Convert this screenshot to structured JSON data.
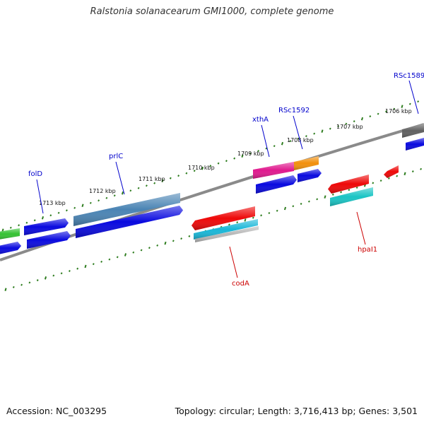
{
  "title": "Ralstonia solanacearum GMI1000, complete genome",
  "footer": {
    "accession": "Accession: NC_003295",
    "topology": "Topology: circular; Length: 3,716,413 bp; Genes: 3,501"
  },
  "colors": {
    "backbone": "#8a8a8a",
    "tick": "#2e7d1f",
    "forward_label": "#0000cc",
    "reverse_label": "#cc0000",
    "blue": "#0a0adf",
    "steelblue": "#4a84b4",
    "green": "#34c232",
    "magenta": "#e0198e",
    "orange": "#f2900c",
    "gray": "#606060",
    "red": "#ee0808",
    "cyan": "#19b7d8",
    "silver": "#b8b8b8",
    "teal": "#1ac4c4"
  },
  "ticks": [
    {
      "label": "1713 kbp"
    },
    {
      "label": "1712 kbp"
    },
    {
      "label": "1711 kbp"
    },
    {
      "label": "1710 kbp"
    },
    {
      "label": "1709 kbp"
    },
    {
      "label": "1708 kbp"
    },
    {
      "label": "1707 kbp"
    },
    {
      "label": "1706 kbp"
    }
  ],
  "gene_labels": [
    {
      "name": "folD",
      "strand": "forward"
    },
    {
      "name": "prlC",
      "strand": "forward"
    },
    {
      "name": "xthA",
      "strand": "forward"
    },
    {
      "name": "RSc1592",
      "strand": "forward"
    },
    {
      "name": "RSc1589",
      "strand": "forward"
    },
    {
      "name": "codA",
      "strand": "reverse"
    },
    {
      "name": "hpaI1",
      "strand": "reverse"
    }
  ]
}
